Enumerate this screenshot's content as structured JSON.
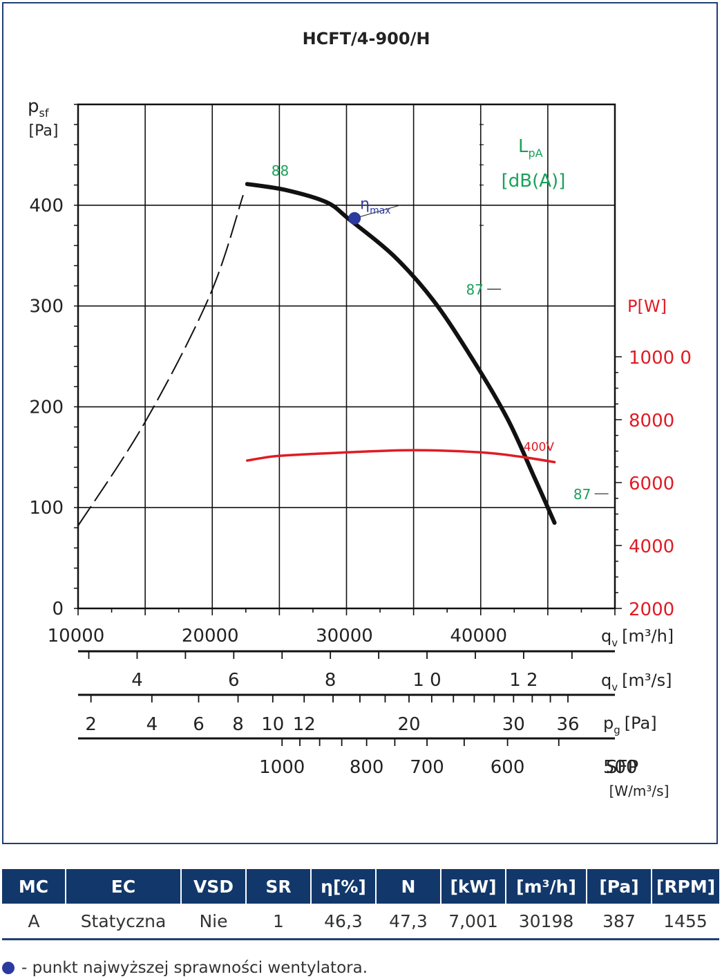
{
  "chart_data": {
    "type": "line",
    "title": "HCFT/4-900/H",
    "ylabel_main": "p",
    "ylabel_sub": "sf",
    "ylabel_unit": "[Pa]",
    "y_ticks": [
      "0",
      "100",
      "200",
      "300",
      "400"
    ],
    "ylim": [
      0,
      500
    ],
    "xlim": [
      10000,
      50000
    ],
    "x_ticks": [
      "10000",
      "20000",
      "30000",
      "40000"
    ],
    "x_tick_values": [
      10000,
      20000,
      30000,
      40000
    ],
    "x_unit_main": "q",
    "x_unit_sub": "v",
    "x_unit": "[m³/h]",
    "grid": true,
    "qv_m3s_ticks": [
      {
        "label": "4",
        "value": 4
      },
      {
        "label": "6",
        "value": 6
      },
      {
        "label": "8",
        "value": 8
      },
      {
        "label": "1 0",
        "value": 10
      },
      {
        "label": "1 2",
        "value": 12
      }
    ],
    "qv_m3s_unit_main": "q",
    "qv_m3s_unit_sub": "v",
    "qv_m3s_unit": "[m³/s]",
    "pg_ticks": [
      {
        "label": "2",
        "value": 2
      },
      {
        "label": "4",
        "value": 4
      },
      {
        "label": "6",
        "value": 6
      },
      {
        "label": "8",
        "value": 8
      },
      {
        "label": "10",
        "value": 10
      },
      {
        "label": "12",
        "value": 12
      },
      {
        "label": "20",
        "value": 20
      },
      {
        "label": "30",
        "value": 30
      },
      {
        "label": "36",
        "value": 36
      }
    ],
    "pg_unit_main": "p",
    "pg_unit_sub": "g",
    "pg_unit": "[Pa]",
    "sfp_ticks": [
      {
        "label": "1000",
        "value": 1000
      },
      {
        "label": "800",
        "value": 800
      },
      {
        "label": "700",
        "value": 700
      },
      {
        "label": "600",
        "value": 600
      },
      {
        "label": "500",
        "value": 500
      }
    ],
    "sfp_label": "SFP",
    "sfp_unit": "[W/m³/s]",
    "power_axis_label": "P[W]",
    "power_ticks": [
      "2000",
      "4000",
      "6000",
      "8000",
      "1000 0"
    ],
    "power_tick_values": [
      2000,
      4000,
      6000,
      8000,
      10000
    ],
    "power_lim": [
      2000,
      10000
    ],
    "noise_label_main": "L",
    "noise_label_sub": "pA",
    "noise_label_unit": "[dB(A)]",
    "series": [
      {
        "role": "pressure",
        "color": "#111111",
        "dashed_part": [
          [
            10000,
            82
          ],
          [
            15000,
            185
          ],
          [
            19800,
            310
          ],
          [
            22300,
            410
          ]
        ],
        "solid_part": [
          [
            22600,
            421
          ],
          [
            25500,
            415
          ],
          [
            28500,
            403
          ],
          [
            30200,
            386
          ],
          [
            33500,
            350
          ],
          [
            36500,
            305
          ],
          [
            39500,
            245
          ],
          [
            42000,
            188
          ],
          [
            44000,
            130
          ],
          [
            45500,
            85
          ]
        ]
      },
      {
        "name": "400V",
        "role": "power",
        "color": "#e01b24",
        "points": [
          [
            22600,
            6700
          ],
          [
            25000,
            6850
          ],
          [
            30000,
            6960
          ],
          [
            35000,
            7030
          ],
          [
            40000,
            6960
          ],
          [
            43000,
            6820
          ],
          [
            45500,
            6650
          ]
        ]
      }
    ],
    "noise_labels": [
      {
        "label": "88",
        "x": 23000,
        "y": 421
      },
      {
        "label": "87",
        "x": 37500,
        "y": 303
      },
      {
        "label": "87",
        "x": 45500,
        "y": 100
      }
    ],
    "eta_max": {
      "x": 30600,
      "y": 387,
      "label_main": "η",
      "label_sub": "max"
    },
    "colors": {
      "green": "#1aa05a",
      "red": "#e01b24",
      "blue": "#2b3a9e",
      "navy": "#12386b"
    }
  },
  "table": {
    "headers": [
      "MC",
      "EC",
      "VSD",
      "SR",
      "η[%]",
      "N",
      "[kW]",
      "[m³/h]",
      "[Pa]",
      "[RPM]"
    ],
    "row": [
      "A",
      "Statyczna",
      "Nie",
      "1",
      "46,3",
      "47,3",
      "7,001",
      "30198",
      "387",
      "1455"
    ]
  },
  "legend_note": "- punkt najwyższej sprawności wentylatora."
}
